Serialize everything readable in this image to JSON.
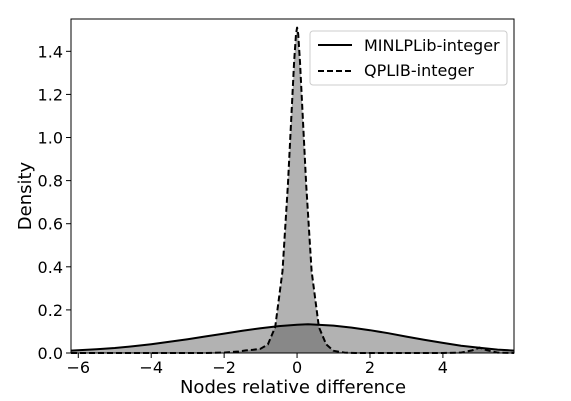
{
  "chart_data": {
    "type": "area",
    "title": "",
    "xlabel": "Nodes relative difference",
    "ylabel": "Density",
    "xlim": [
      -6.2,
      5.95
    ],
    "ylim": [
      0,
      1.55
    ],
    "xticks": [
      -6,
      -4,
      -2,
      0,
      2,
      4
    ],
    "yticks": [
      0.0,
      0.2,
      0.4,
      0.6,
      0.8,
      1.0,
      1.2,
      1.4
    ],
    "xtick_labels": [
      "−6",
      "−4",
      "−2",
      "0",
      "2",
      "4"
    ],
    "ytick_labels": [
      "0.0",
      "0.2",
      "0.4",
      "0.6",
      "0.8",
      "1.0",
      "1.2",
      "1.4"
    ],
    "grid": false,
    "legend_position": "top-right",
    "colors": {
      "fill": "#555555",
      "fill_opacity": "0.45",
      "line": "#000000"
    },
    "series": [
      {
        "name": "MINLPLib-integer",
        "line_style": "solid",
        "x": [
          -6.2,
          -5.5,
          -5.0,
          -4.5,
          -4.0,
          -3.5,
          -3.0,
          -2.5,
          -2.0,
          -1.5,
          -1.0,
          -0.5,
          0.0,
          0.3,
          0.5,
          1.0,
          1.5,
          2.0,
          2.5,
          3.0,
          3.5,
          4.0,
          4.5,
          5.0,
          5.5,
          5.95
        ],
        "y": [
          0.011,
          0.017,
          0.023,
          0.031,
          0.041,
          0.052,
          0.064,
          0.077,
          0.09,
          0.103,
          0.115,
          0.125,
          0.131,
          0.133,
          0.132,
          0.127,
          0.118,
          0.106,
          0.092,
          0.076,
          0.061,
          0.047,
          0.034,
          0.024,
          0.016,
          0.011
        ]
      },
      {
        "name": "QPLIB-integer",
        "line_style": "dashed",
        "x": [
          -6.2,
          -2.5,
          -2.0,
          -1.6,
          -1.4,
          -1.2,
          -1.0,
          -0.8,
          -0.6,
          -0.4,
          -0.25,
          -0.15,
          -0.08,
          -0.03,
          0.0,
          0.03,
          0.08,
          0.15,
          0.25,
          0.4,
          0.6,
          0.8,
          1.0,
          1.3,
          1.6,
          2.0,
          3.0,
          4.0,
          4.5,
          4.8,
          5.0,
          5.2,
          5.5,
          5.95
        ],
        "y": [
          0.0,
          0.0,
          0.002,
          0.007,
          0.012,
          0.015,
          0.02,
          0.04,
          0.12,
          0.38,
          0.78,
          1.12,
          1.35,
          1.48,
          1.51,
          1.48,
          1.35,
          1.12,
          0.78,
          0.38,
          0.12,
          0.04,
          0.01,
          0.002,
          0.0,
          0.0,
          0.0,
          0.0,
          0.002,
          0.012,
          0.025,
          0.013,
          0.002,
          0.0
        ]
      }
    ]
  }
}
